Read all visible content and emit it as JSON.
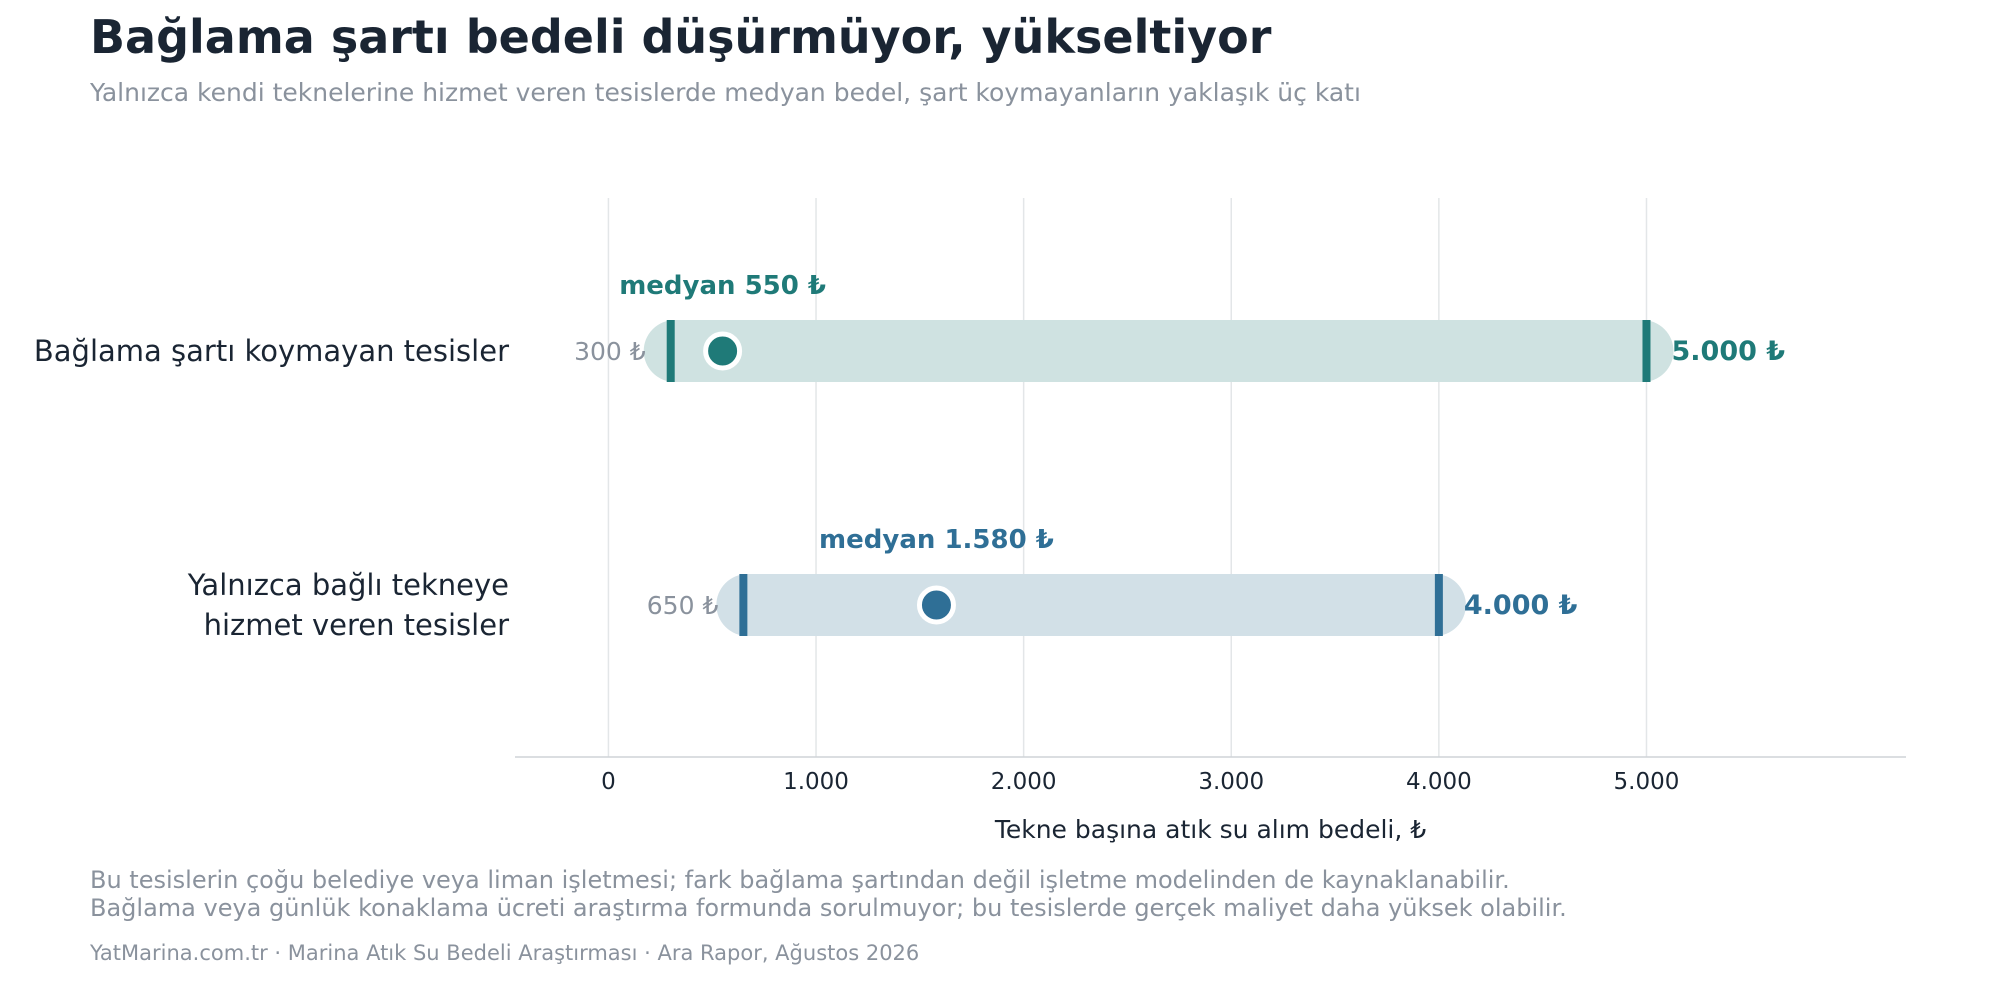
{
  "title": "Bağlama şartı bedeli düşürmüyor, yükseltiyor",
  "subtitle": "Yalnızca kendi teknelerine hizmet veren tesislerde medyan bedel, şart koymayanların yaklaşık üç katı",
  "notes": [
    "Bu tesislerin çoğu belediye veya liman işletmesi; fark bağlama şartından değil işletme modelinden de kaynaklanabilir.",
    "Bağlama veya günlük konaklama ücreti araştırma formunda sorulmuyor; bu tesislerde gerçek maliyet daha yüksek olabilir."
  ],
  "source": "YatMarina.com.tr  ·  Marina Atık Su Bedeli Araştırması  ·  Ara Rapor, Ağustos 2026",
  "chart_data": {
    "type": "range",
    "xlabel": "Tekne başına atık su alım bedeli, ₺",
    "xlim": [
      -450,
      6250
    ],
    "xticks": [
      0,
      1000,
      2000,
      3000,
      4000,
      5000
    ],
    "xtick_labels": [
      "0",
      "1.000",
      "2.000",
      "3.000",
      "4.000",
      "5.000"
    ],
    "grid": "vertical",
    "series": [
      {
        "category_lines": [
          "Bağlama şartı koymayan tesisler"
        ],
        "min": 300,
        "median": 550,
        "max": 5000,
        "min_label": "300 ₺",
        "median_label": "medyan 550 ₺",
        "max_label": "5.000 ₺",
        "color": "#1f7a78",
        "band_color": "#cfe2e1"
      },
      {
        "category_lines": [
          "Yalnızca bağlı tekneye",
          "hizmet veren tesisler"
        ],
        "min": 650,
        "median": 1580,
        "max": 4000,
        "min_label": "650 ₺",
        "median_label": "medyan 1.580 ₺",
        "max_label": "4.000 ₺",
        "color": "#2f6f96",
        "band_color": "#d2e0e7"
      }
    ]
  }
}
